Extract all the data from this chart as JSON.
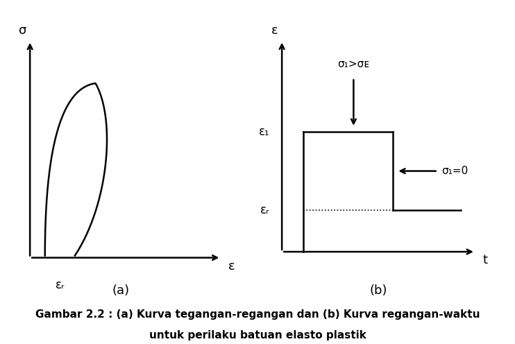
{
  "bg_color": "#ffffff",
  "text_color": "#000000",
  "caption": "Gambar 2.2 : (a) Kurva tegangan-regangan dan (b) Kurva regangan-waktu",
  "caption2": "untuk perilaku batuan elasto plastik",
  "label_a": "(a)",
  "label_b": "(b)",
  "sigma_label": "σ",
  "epsilon_label": "ε",
  "epsilon_r_label": "εᵣ",
  "epsilon_1_label": "ε₁",
  "t_label": "t",
  "sigma1_arrow_label": "σ₁>σᴇ",
  "sigma1_zero_label": "σ₁=0"
}
